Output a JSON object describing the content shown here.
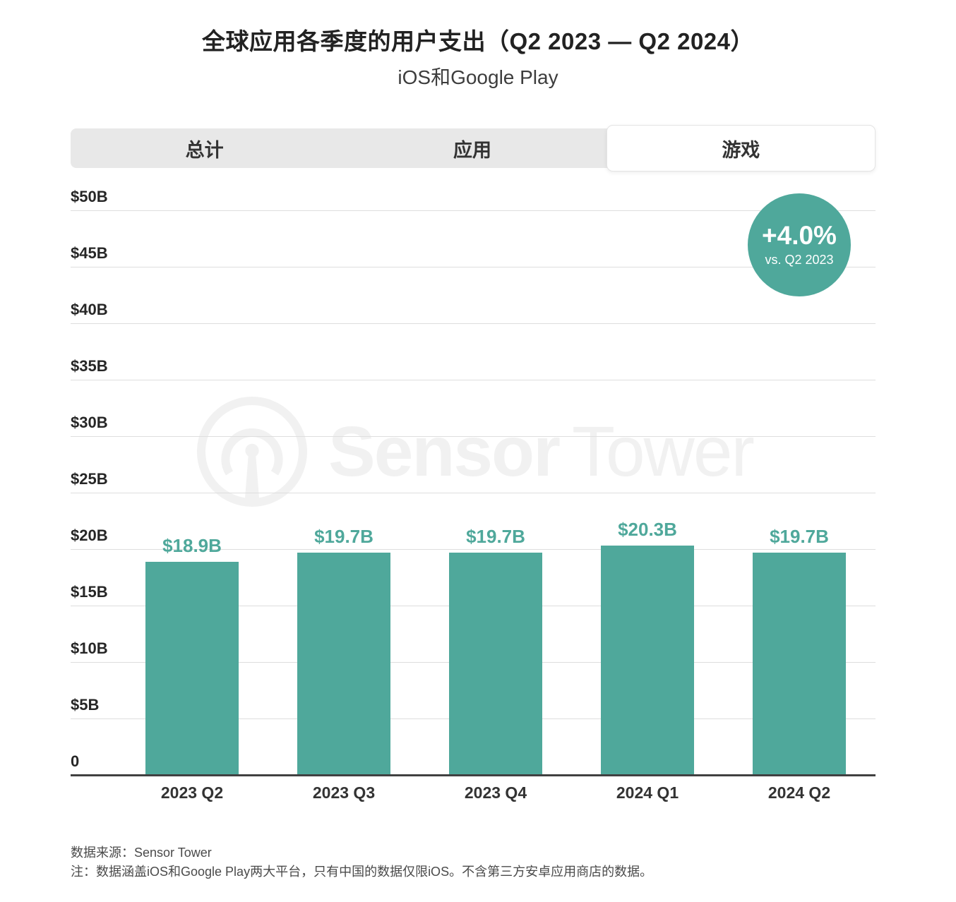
{
  "header": {
    "title": "全球应用各季度的用户支出（Q2 2023 — Q2 2024）",
    "subtitle": "iOS和Google Play"
  },
  "tabs": [
    {
      "label": "总计",
      "active": false
    },
    {
      "label": "应用",
      "active": false
    },
    {
      "label": "游戏",
      "active": true
    }
  ],
  "watermark": {
    "logo": "sensor-tower-logo",
    "brand_bold": "Sensor",
    "brand_light": "Tower"
  },
  "chart_data": {
    "type": "bar",
    "title": "全球应用各季度的用户支出（Q2 2023 — Q2 2024）",
    "subtitle": "iOS和Google Play",
    "categories": [
      "2023 Q2",
      "2023 Q3",
      "2023 Q4",
      "2024 Q1",
      "2024 Q2"
    ],
    "values": [
      18.9,
      19.7,
      19.7,
      20.3,
      19.7
    ],
    "bar_labels": [
      "$18.9B",
      "$19.7B",
      "$19.7B",
      "$20.3B",
      "$19.7B"
    ],
    "y_ticks": [
      {
        "value": 50,
        "label": "$50B"
      },
      {
        "value": 45,
        "label": "$45B"
      },
      {
        "value": 40,
        "label": "$40B"
      },
      {
        "value": 35,
        "label": "$35B"
      },
      {
        "value": 30,
        "label": "$30B"
      },
      {
        "value": 25,
        "label": "$25B"
      },
      {
        "value": 20,
        "label": "$20B"
      },
      {
        "value": 15,
        "label": "$15B"
      },
      {
        "value": 10,
        "label": "$10B"
      },
      {
        "value": 5,
        "label": "$5B"
      },
      {
        "value": 0,
        "label": "0"
      }
    ],
    "ylim": [
      0,
      50
    ],
    "grid": true,
    "legend": false,
    "annotation": {
      "text": "+4.0%",
      "caption": "vs. Q2 2023"
    }
  },
  "footer": {
    "source": "数据来源：Sensor Tower",
    "note": "注：数据涵盖iOS和Google Play两大平台，只有中国的数据仅限iOS。不含第三方安卓应用商店的数据。"
  },
  "colors": {
    "accent_teal": "#4FA89B",
    "tab_bg": "#e8e8e8",
    "gridline": "#dedede",
    "axis": "#414141",
    "watermark": "#f1f1f1"
  }
}
